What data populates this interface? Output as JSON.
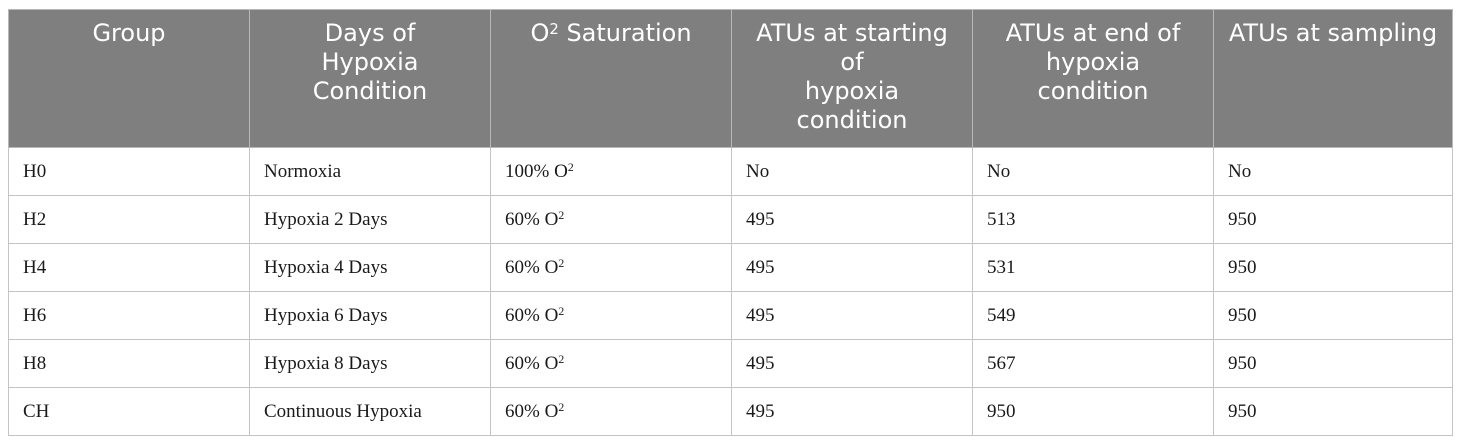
{
  "table": {
    "headers": [
      {
        "lines": [
          "Group"
        ]
      },
      {
        "lines": [
          "Days of",
          "Hypoxia",
          "Condition"
        ]
      },
      {
        "lines": [
          "O",
          "Saturation"
        ],
        "superscript": "2"
      },
      {
        "lines": [
          "ATUs at starting",
          "of",
          "hypoxia",
          "condition"
        ]
      },
      {
        "lines": [
          "ATUs at end of",
          "hypoxia",
          "condition"
        ]
      },
      {
        "lines": [
          "ATUs at sampling"
        ]
      }
    ],
    "rows": [
      {
        "group": "H0",
        "days": "Normoxia",
        "sat_value": "100% O",
        "sat_sup": "2",
        "atu_start": "No",
        "atu_end": "No",
        "atu_sampling": "No"
      },
      {
        "group": "H2",
        "days": "Hypoxia 2 Days",
        "sat_value": "60% O",
        "sat_sup": "2",
        "atu_start": "495",
        "atu_end": "513",
        "atu_sampling": "950"
      },
      {
        "group": "H4",
        "days": "Hypoxia 4 Days",
        "sat_value": "60% O",
        "sat_sup": "2",
        "atu_start": "495",
        "atu_end": "531",
        "atu_sampling": "950"
      },
      {
        "group": "H6",
        "days": "Hypoxia 6 Days",
        "sat_value": "60% O",
        "sat_sup": "2",
        "atu_start": "495",
        "atu_end": "549",
        "atu_sampling": "950"
      },
      {
        "group": "H8",
        "days": "Hypoxia 8 Days",
        "sat_value": "60% O",
        "sat_sup": "2",
        "atu_start": "495",
        "atu_end": "567",
        "atu_sampling": "950"
      },
      {
        "group": "CH",
        "days": "Continuous Hypoxia",
        "sat_value": "60% O",
        "sat_sup": "2",
        "atu_start": "495",
        "atu_end": "950",
        "atu_sampling": "950"
      }
    ]
  }
}
